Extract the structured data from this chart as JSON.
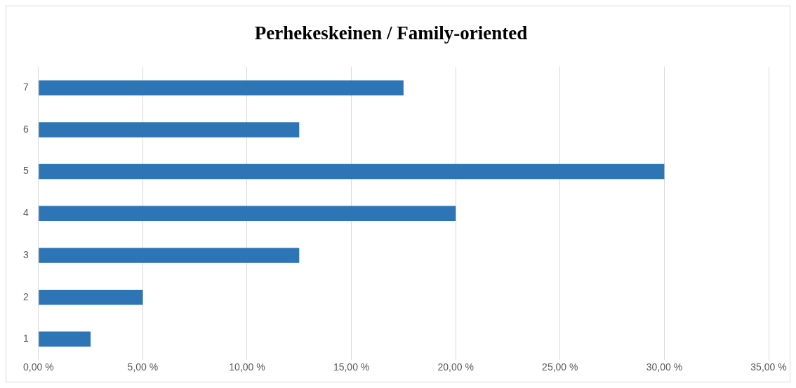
{
  "chart_data": {
    "type": "bar",
    "orientation": "horizontal",
    "title": "Perhekeskeinen / Family-oriented",
    "categories": [
      "7",
      "6",
      "5",
      "4",
      "3",
      "2",
      "1"
    ],
    "values": [
      17.5,
      12.5,
      30,
      20,
      12.5,
      5,
      2.5
    ],
    "color": "#2e75b6",
    "xlim": [
      0,
      35
    ],
    "xticks": [
      {
        "value": 0,
        "label": "0,00 %"
      },
      {
        "value": 5,
        "label": "5,00 %"
      },
      {
        "value": 10,
        "label": "10,00 %"
      },
      {
        "value": 15,
        "label": "15,00 %"
      },
      {
        "value": 20,
        "label": "20,00 %"
      },
      {
        "value": 25,
        "label": "25,00 %"
      },
      {
        "value": 30,
        "label": "30,00 %"
      },
      {
        "value": 35,
        "label": "35,00 %"
      }
    ],
    "grid": "x",
    "legend": false
  }
}
